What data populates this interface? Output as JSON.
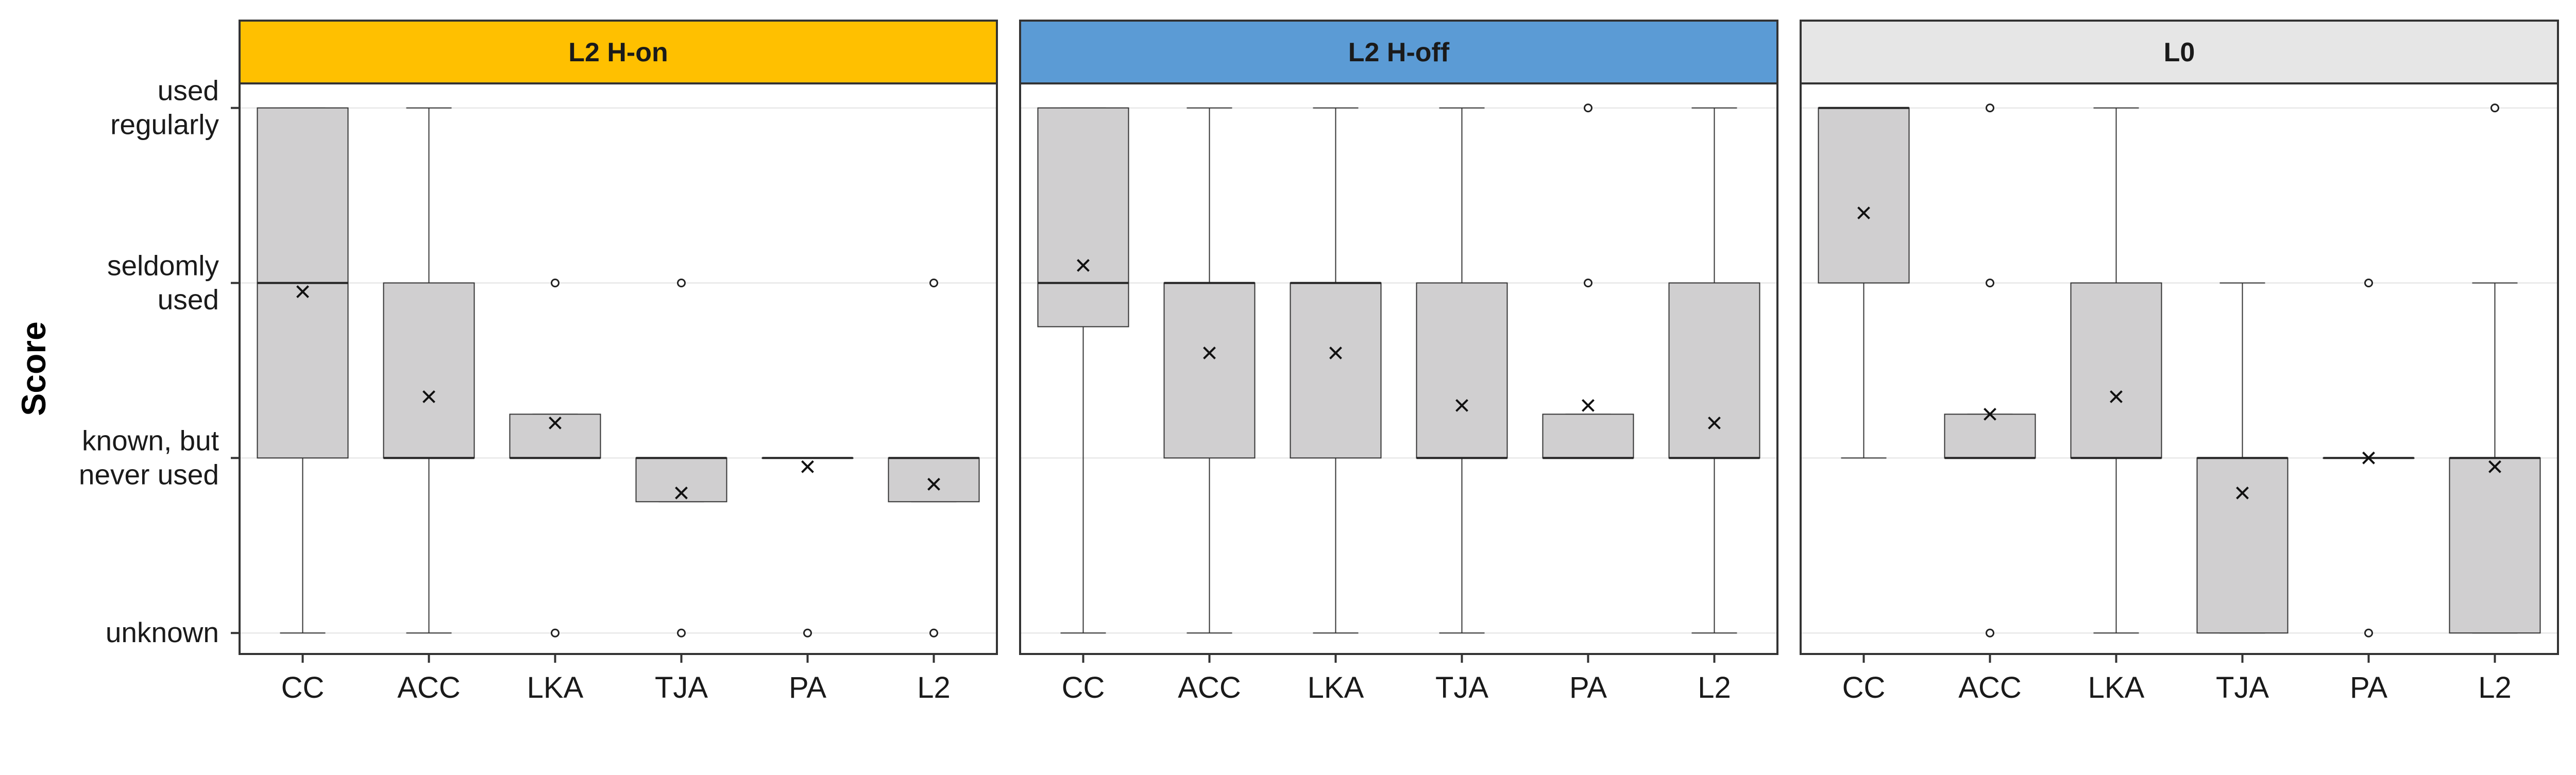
{
  "chart_data": {
    "type": "box",
    "ylabel": "Score",
    "xlabel": "",
    "y_levels": [
      {
        "value": 0,
        "lines": [
          "unknown"
        ]
      },
      {
        "value": 1,
        "lines": [
          "known, but",
          "never used"
        ]
      },
      {
        "value": 2,
        "lines": [
          "seldomly",
          "used"
        ]
      },
      {
        "value": 3,
        "lines": [
          "used",
          "regularly"
        ]
      }
    ],
    "ylim": [
      -0.12,
      3.14
    ],
    "grid": true,
    "box_fill": "#d0cfd0",
    "categories": [
      "CC",
      "ACC",
      "LKA",
      "TJA",
      "PA",
      "L2"
    ],
    "panels": [
      {
        "title": "L2 H-on",
        "strip_color": "#ffc000",
        "boxes": [
          {
            "category": "CC",
            "whisker_low": 0,
            "q1": 1,
            "median": 2,
            "q3": 3,
            "whisker_high": 3,
            "mean": 1.95,
            "outliers": []
          },
          {
            "category": "ACC",
            "whisker_low": 0,
            "q1": 1,
            "median": 1,
            "q3": 2,
            "whisker_high": 3,
            "mean": 1.35,
            "outliers": []
          },
          {
            "category": "LKA",
            "whisker_low": 1,
            "q1": 1,
            "median": 1,
            "q3": 1.25,
            "whisker_high": 1.25,
            "mean": 1.2,
            "outliers": [
              0,
              2
            ]
          },
          {
            "category": "TJA",
            "whisker_low": 0.75,
            "q1": 0.75,
            "median": 1,
            "q3": 1,
            "whisker_high": 1,
            "mean": 0.8,
            "outliers": [
              0,
              2
            ]
          },
          {
            "category": "PA",
            "whisker_low": 1,
            "q1": 1,
            "median": 1,
            "q3": 1,
            "whisker_high": 1,
            "mean": 0.95,
            "outliers": [
              0
            ]
          },
          {
            "category": "L2",
            "whisker_low": 0.75,
            "q1": 0.75,
            "median": 1,
            "q3": 1,
            "whisker_high": 1,
            "mean": 0.85,
            "outliers": [
              0,
              2
            ]
          }
        ]
      },
      {
        "title": "L2 H-off",
        "strip_color": "#5b9bd5",
        "boxes": [
          {
            "category": "CC",
            "whisker_low": 0,
            "q1": 1.75,
            "median": 2,
            "q3": 3,
            "whisker_high": 3,
            "mean": 2.1,
            "outliers": []
          },
          {
            "category": "ACC",
            "whisker_low": 0,
            "q1": 1,
            "median": 2,
            "q3": 2,
            "whisker_high": 3,
            "mean": 1.6,
            "outliers": []
          },
          {
            "category": "LKA",
            "whisker_low": 0,
            "q1": 1,
            "median": 2,
            "q3": 2,
            "whisker_high": 3,
            "mean": 1.6,
            "outliers": []
          },
          {
            "category": "TJA",
            "whisker_low": 0,
            "q1": 1,
            "median": 1,
            "q3": 2,
            "whisker_high": 3,
            "mean": 1.3,
            "outliers": []
          },
          {
            "category": "PA",
            "whisker_low": 1,
            "q1": 1,
            "median": 1,
            "q3": 1.25,
            "whisker_high": 1.25,
            "mean": 1.3,
            "outliers": [
              2,
              3
            ]
          },
          {
            "category": "L2",
            "whisker_low": 0,
            "q1": 1,
            "median": 1,
            "q3": 2,
            "whisker_high": 3,
            "mean": 1.2,
            "outliers": []
          }
        ]
      },
      {
        "title": "L0",
        "strip_color": "#e6e6e6",
        "boxes": [
          {
            "category": "CC",
            "whisker_low": 1,
            "q1": 2,
            "median": 3,
            "q3": 3,
            "whisker_high": 3,
            "mean": 2.4,
            "outliers": []
          },
          {
            "category": "ACC",
            "whisker_low": 1,
            "q1": 1,
            "median": 1,
            "q3": 1.25,
            "whisker_high": 1.25,
            "mean": 1.25,
            "outliers": [
              0,
              2,
              3
            ]
          },
          {
            "category": "LKA",
            "whisker_low": 0,
            "q1": 1,
            "median": 1,
            "q3": 2,
            "whisker_high": 3,
            "mean": 1.35,
            "outliers": []
          },
          {
            "category": "TJA",
            "whisker_low": 0,
            "q1": 0,
            "median": 1,
            "q3": 1,
            "whisker_high": 2,
            "mean": 0.8,
            "outliers": []
          },
          {
            "category": "PA",
            "whisker_low": 1,
            "q1": 1,
            "median": 1,
            "q3": 1,
            "whisker_high": 1,
            "mean": 1.0,
            "outliers": [
              0,
              2
            ]
          },
          {
            "category": "L2",
            "whisker_low": 0,
            "q1": 0,
            "median": 1,
            "q3": 1,
            "whisker_high": 2,
            "mean": 0.95,
            "outliers": [
              3
            ]
          }
        ]
      }
    ]
  }
}
